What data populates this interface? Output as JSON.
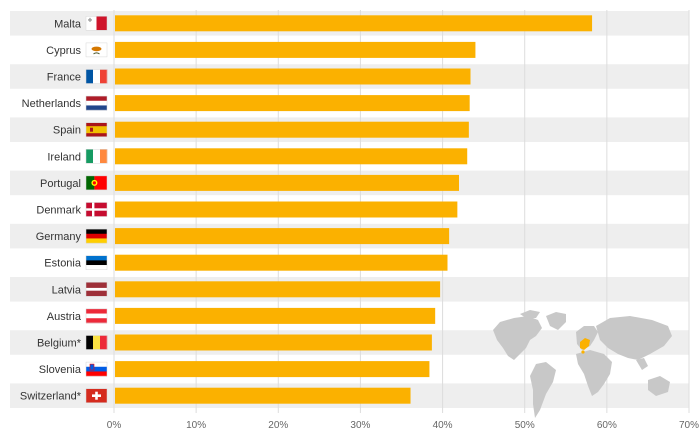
{
  "chart_data": {
    "type": "bar",
    "orientation": "horizontal",
    "title": "",
    "xlabel": "",
    "ylabel": "",
    "categories": [
      "Malta",
      "Cyprus",
      "France",
      "Netherlands",
      "Spain",
      "Ireland",
      "Portugal",
      "Denmark",
      "Germany",
      "Estonia",
      "Latvia",
      "Austria",
      "Belgium*",
      "Slovenia",
      "Switzerland*"
    ],
    "values": [
      58.2,
      44.0,
      43.4,
      43.3,
      43.2,
      43.0,
      42.0,
      41.8,
      40.8,
      40.6,
      39.7,
      39.1,
      38.7,
      38.4,
      36.1
    ],
    "xlim": [
      0,
      70
    ],
    "xticks": [
      0,
      10,
      20,
      30,
      40,
      50,
      60,
      70
    ],
    "tick_labels": [
      "0%",
      "10%",
      "20%",
      "30%",
      "40%",
      "50%",
      "60%",
      "70%"
    ],
    "grid": true,
    "bar_color": "#fbb100",
    "row_band_color": "#eeeeee",
    "inset": "world-map-europe-highlighted"
  }
}
